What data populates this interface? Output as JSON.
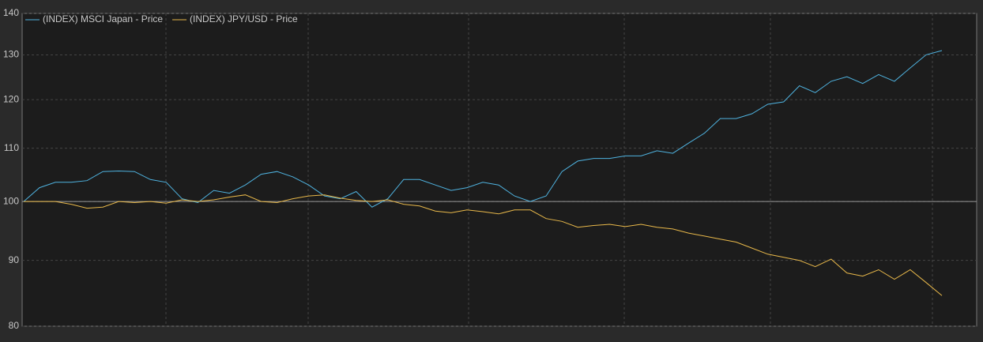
{
  "chart_data": {
    "type": "line",
    "log_scale": true,
    "ylim": [
      80,
      140
    ],
    "yticks": [
      80,
      90,
      100,
      110,
      120,
      130,
      140
    ],
    "grid": true,
    "legend": "top-left",
    "series": [
      {
        "name": "(INDEX) MSCI Japan - Price",
        "color": "#4fb3e0",
        "values": [
          100,
          102.5,
          103.5,
          103.5,
          103.8,
          105.5,
          105.6,
          105.5,
          104,
          103.5,
          100.5,
          99.8,
          102,
          101.5,
          103,
          105,
          105.5,
          104.5,
          103,
          101,
          100.5,
          101.8,
          99,
          100.5,
          104,
          104,
          103,
          102,
          102.5,
          103.5,
          103,
          101,
          100,
          101,
          105.5,
          107.5,
          108,
          108,
          108.5,
          108.5,
          109.5,
          109,
          111,
          113,
          116,
          116,
          117,
          119,
          119.5,
          123,
          121.5,
          124,
          125,
          123.5,
          125.5,
          124,
          127,
          130,
          131
        ]
      },
      {
        "name": "(INDEX) JPY/USD - Price",
        "color": "#e8b84a",
        "values": [
          100,
          100,
          100,
          99.5,
          98.8,
          99,
          100,
          99.8,
          100,
          99.7,
          100.3,
          100,
          100.3,
          100.8,
          101.2,
          100,
          99.8,
          100.5,
          101,
          101.2,
          100.6,
          100.2,
          100,
          100.3,
          99.5,
          99.2,
          98.3,
          98,
          98.5,
          98.2,
          97.8,
          98.5,
          98.5,
          97,
          96.5,
          95.5,
          95.8,
          96,
          95.6,
          96,
          95.5,
          95.2,
          94.5,
          94,
          93.5,
          93,
          92,
          91,
          90.5,
          90,
          89,
          90.2,
          88,
          87.5,
          88.5,
          87,
          88.5,
          86.5,
          84.5
        ]
      }
    ]
  }
}
